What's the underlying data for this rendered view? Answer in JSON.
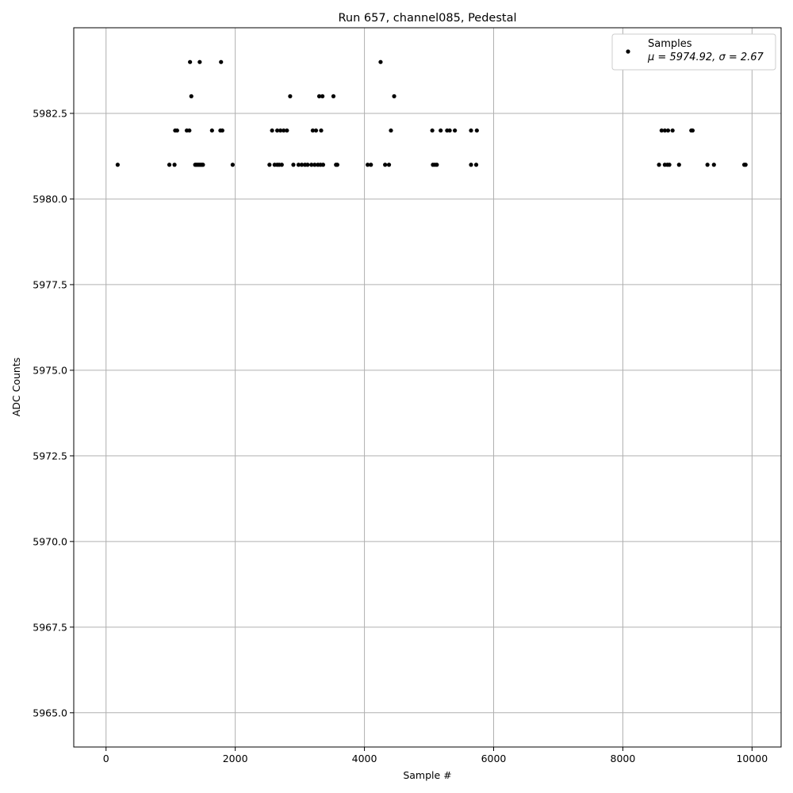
{
  "chart_data": {
    "type": "scatter",
    "title": "Run 657, channel085, Pedestal",
    "xlabel": "Sample #",
    "ylabel": "ADC Counts",
    "xlim": [
      -500,
      10450
    ],
    "ylim": [
      5964.0,
      5985.0
    ],
    "x_ticks": [
      0,
      2000,
      4000,
      6000,
      8000,
      10000
    ],
    "y_ticks": [
      5965.0,
      5967.5,
      5970.0,
      5972.5,
      5975.0,
      5977.5,
      5980.0,
      5982.5
    ],
    "x_tick_labels": [
      "0",
      "2000",
      "4000",
      "6000",
      "8000",
      "10000"
    ],
    "y_tick_labels": [
      "5965.0",
      "5967.5",
      "5970.0",
      "5972.5",
      "5975.0",
      "5977.5",
      "5980.0",
      "5982.5"
    ],
    "grid": true,
    "legend": {
      "placement": "top-right",
      "entries": [
        {
          "name": "Samples",
          "stats": "μ = 5974.92, σ = 2.67"
        }
      ]
    },
    "point_color": "#000000",
    "series": [
      {
        "name": "Samples",
        "levels": [
          {
            "y": 5984,
            "x": [
              1300,
              1450,
              1780,
              4250
            ]
          },
          {
            "y": 5983,
            "x": [
              1320,
              2850,
              3300,
              3350,
              3520,
              4460
            ]
          },
          {
            "y": 5982,
            "x": [
              1070,
              1100,
              1250,
              1290,
              1640,
              1770,
              1800,
              2570,
              2650,
              2700,
              2750,
              2800,
              3200,
              3250,
              3330,
              4410,
              5050,
              5180,
              5280,
              5320,
              5400,
              5650,
              5740,
              8600,
              8650,
              8700,
              8770,
              9060,
              9080
            ]
          },
          {
            "y": 5981,
            "x": [
              180,
              980,
              1060,
              1380,
              1400,
              1420,
              1440,
              1460,
              1480,
              1500,
              1960,
              2530,
              2610,
              2650,
              2680,
              2720,
              2900,
              2980,
              3030,
              3080,
              3120,
              3180,
              3230,
              3280,
              3320,
              3360,
              3560,
              3580,
              4050,
              4100,
              4320,
              4380,
              5060,
              5090,
              5120,
              5650,
              5730,
              8560,
              8650,
              8690,
              8720,
              8870,
              9310,
              9410,
              9880,
              9900
            ]
          }
        ]
      }
    ]
  }
}
